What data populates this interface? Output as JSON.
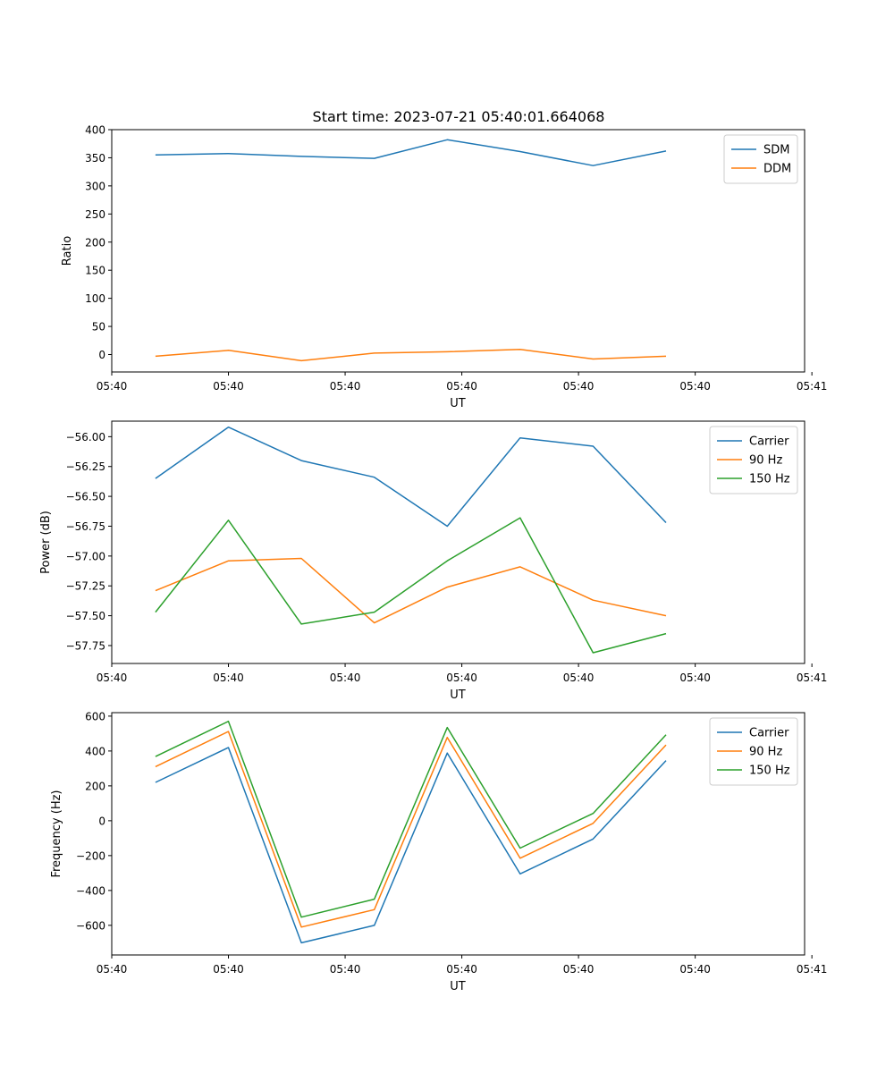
{
  "figure_title": "Start time: 2023-07-21 05:40:01.664068",
  "colors": {
    "blue": "#1f77b4",
    "orange": "#ff7f0e",
    "green": "#2ca02c"
  },
  "chart_data": [
    {
      "type": "line",
      "title": "Start time: 2023-07-21 05:40:01.664068",
      "xlabel": "UT",
      "ylabel": "Ratio",
      "x": [
        0.6,
        1.6,
        2.6,
        3.6,
        4.6,
        5.6,
        6.6,
        7.6
      ],
      "xlim": [
        0,
        9.5
      ],
      "xticks": [
        0.0,
        1.6,
        3.2,
        4.8,
        6.4,
        8.0,
        9.6
      ],
      "xtick_labels": [
        "05:40",
        "05:40",
        "05:40",
        "05:40",
        "05:40",
        "05:40",
        "05:41"
      ],
      "ylim": [
        -31,
        400
      ],
      "yticks": [
        0,
        50,
        100,
        150,
        200,
        250,
        300,
        350,
        400
      ],
      "ytick_labels": [
        "0",
        "50",
        "100",
        "150",
        "200",
        "250",
        "300",
        "350",
        "400"
      ],
      "legend": "top-right",
      "series": [
        {
          "name": "SDM",
          "color": "#1f77b4",
          "values": [
            355,
            357.5,
            352.5,
            349,
            382,
            361,
            336,
            362
          ]
        },
        {
          "name": "DDM",
          "color": "#ff7f0e",
          "values": [
            -3,
            7.5,
            -11,
            2.5,
            5,
            9,
            -8,
            -3
          ]
        }
      ]
    },
    {
      "type": "line",
      "xlabel": "UT",
      "ylabel": "Power (dB)",
      "x": [
        0.6,
        1.6,
        2.6,
        3.6,
        4.6,
        5.6,
        6.6,
        7.6
      ],
      "xlim": [
        0,
        9.5
      ],
      "xticks": [
        0.0,
        1.6,
        3.2,
        4.8,
        6.4,
        8.0,
        9.6
      ],
      "xtick_labels": [
        "05:40",
        "05:40",
        "05:40",
        "05:40",
        "05:40",
        "05:40",
        "05:41"
      ],
      "ylim": [
        -57.9,
        -55.87
      ],
      "yticks": [
        -57.75,
        -57.5,
        -57.25,
        -57.0,
        -56.75,
        -56.5,
        -56.25,
        -56.0
      ],
      "ytick_labels": [
        "−57.75",
        "−57.50",
        "−57.25",
        "−57.00",
        "−56.75",
        "−56.50",
        "−56.25",
        "−56.00"
      ],
      "legend": "top-right",
      "series": [
        {
          "name": "Carrier",
          "color": "#1f77b4",
          "values": [
            -56.35,
            -55.92,
            -56.2,
            -56.34,
            -56.75,
            -56.01,
            -56.08,
            -56.72
          ]
        },
        {
          "name": "90 Hz",
          "color": "#ff7f0e",
          "values": [
            -57.29,
            -57.04,
            -57.02,
            -57.56,
            -57.26,
            -57.09,
            -57.37,
            -57.5
          ]
        },
        {
          "name": "150 Hz",
          "color": "#2ca02c",
          "values": [
            -57.47,
            -56.7,
            -57.57,
            -57.47,
            -57.04,
            -56.68,
            -57.81,
            -57.65
          ]
        }
      ]
    },
    {
      "type": "line",
      "xlabel": "UT",
      "ylabel": "Frequency (Hz)",
      "x": [
        0.6,
        1.6,
        2.6,
        3.6,
        4.6,
        5.6,
        6.6,
        7.6
      ],
      "xlim": [
        0,
        9.5
      ],
      "xticks": [
        0.0,
        1.6,
        3.2,
        4.8,
        6.4,
        8.0,
        9.6
      ],
      "xtick_labels": [
        "05:40",
        "05:40",
        "05:40",
        "05:40",
        "05:40",
        "05:40",
        "05:41"
      ],
      "ylim": [
        -770,
        620
      ],
      "yticks": [
        -600,
        -400,
        -200,
        0,
        200,
        400,
        600
      ],
      "ytick_labels": [
        "−600",
        "−400",
        "−200",
        "0",
        "200",
        "400",
        "600"
      ],
      "legend": "top-right",
      "series": [
        {
          "name": "Carrier",
          "color": "#1f77b4",
          "values": [
            220,
            420,
            -700,
            -600,
            388,
            -305,
            -105,
            345
          ]
        },
        {
          "name": "90 Hz",
          "color": "#ff7f0e",
          "values": [
            310,
            512,
            -610,
            -510,
            478,
            -215,
            -15,
            435
          ]
        },
        {
          "name": "150 Hz",
          "color": "#2ca02c",
          "values": [
            368,
            570,
            -553,
            -450,
            535,
            -157,
            42,
            493
          ]
        }
      ]
    }
  ]
}
